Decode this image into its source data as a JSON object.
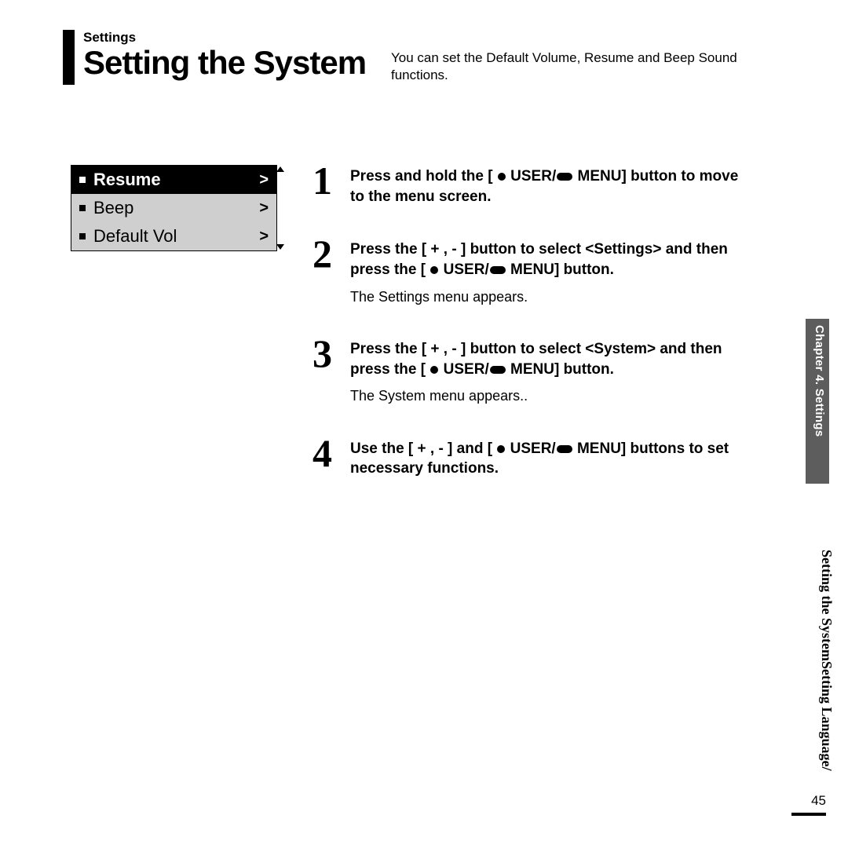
{
  "header": {
    "section_label": "Settings",
    "title": "Setting the System",
    "intro": "You can set the Default Volume, Resume and Beep Sound functions."
  },
  "device_menu": {
    "items": [
      {
        "label": "Resume",
        "selected": true
      },
      {
        "label": "Beep",
        "selected": false
      },
      {
        "label": "Default Vol",
        "selected": false
      }
    ],
    "colors": {
      "selected_bg": "#000000",
      "selected_fg": "#ffffff",
      "unselected_bg": "#cfcfcf",
      "unselected_fg": "#000000"
    }
  },
  "steps": [
    {
      "num": "1",
      "main_pre": "Press and hold the [",
      "main_post": "MENU] button to move to the menu screen.",
      "has_user_menu_icons": true,
      "sub": ""
    },
    {
      "num": "2",
      "main_pre": "Press the [ + , - ] button to select <Settings> and then press the [",
      "main_post": "MENU] button.",
      "has_user_menu_icons": true,
      "sub": "The Settings menu appears."
    },
    {
      "num": "3",
      "main_pre": "Press the [ + , - ] button to select <System> and then press the [",
      "main_post": "MENU] button.",
      "has_user_menu_icons": true,
      "sub": "The System menu appears.."
    },
    {
      "num": "4",
      "main_pre": "Use the [ + , - ] and [",
      "main_post": "MENU] buttons to set necessary functions.",
      "has_user_menu_icons": true,
      "sub": ""
    }
  ],
  "side": {
    "tab": "Chapter 4. Settings",
    "sub_line1": "Setting Language/",
    "sub_line2": "Setting the System"
  },
  "page_number": "45",
  "colors": {
    "side_tab_bg": "#5d5d5d",
    "side_tab_fg": "#ffffff",
    "page_bg": "#ffffff",
    "text": "#000000"
  },
  "fonts": {
    "body": "Arial",
    "title_weight": "bold",
    "step_num_family": "Times New Roman",
    "step_num_size_pt": 38,
    "title_size_pt": 32,
    "body_size_pt": 14
  }
}
